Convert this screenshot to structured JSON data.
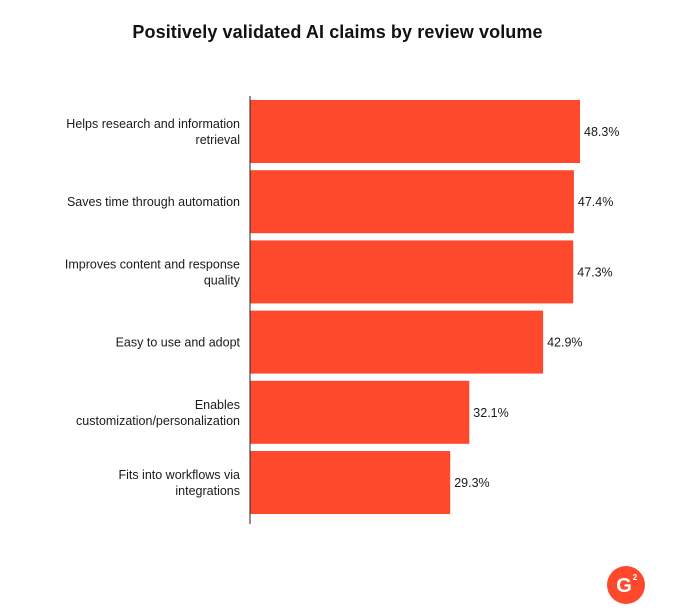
{
  "chart_data": {
    "type": "bar",
    "orientation": "horizontal",
    "title": "Positively validated AI claims by review volume",
    "categories": [
      [
        "Helps research and information",
        "retrieval"
      ],
      [
        "Saves time through automation"
      ],
      [
        "Improves content and response",
        "quality"
      ],
      [
        "Easy to use and adopt"
      ],
      [
        "Enables",
        "customization/personalization"
      ],
      [
        "Fits into workflows via",
        "integrations"
      ]
    ],
    "values": [
      48.3,
      47.4,
      47.3,
      42.9,
      32.1,
      29.3
    ],
    "value_labels": [
      "48.3%",
      "47.4%",
      "47.3%",
      "42.9%",
      "32.1%",
      "29.3%"
    ],
    "xlim": [
      0,
      48.3
    ],
    "xlabel": "",
    "ylabel": "",
    "grid": false,
    "bar_color": "#ff492c"
  },
  "logo": {
    "icon": "g2-logo-icon",
    "color": "#ff492c"
  }
}
